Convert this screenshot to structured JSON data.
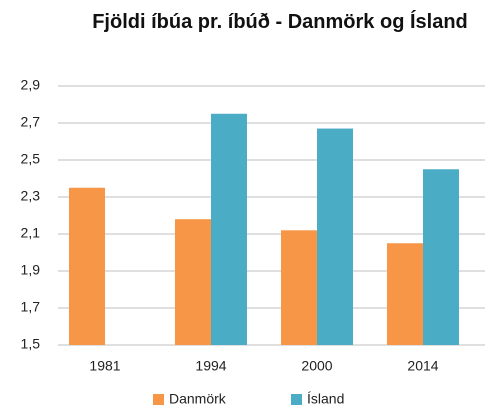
{
  "chart_data": {
    "type": "bar",
    "title": "Fjöldi íbúa pr. íbúð - Danmörk og Ísland",
    "categories": [
      "1981",
      "1994",
      "2000",
      "2014"
    ],
    "series": [
      {
        "name": "Danmörk",
        "color": "#f79646",
        "values": [
          2.35,
          2.18,
          2.12,
          2.05
        ]
      },
      {
        "name": "Ísland",
        "color": "#4bacc6",
        "values": [
          null,
          2.75,
          2.67,
          2.45
        ]
      }
    ],
    "ylim": [
      1.5,
      2.9
    ],
    "yticks": [
      {
        "value": 1.5,
        "label": "1,5"
      },
      {
        "value": 1.7,
        "label": "1,7"
      },
      {
        "value": 1.9,
        "label": "1,9"
      },
      {
        "value": 2.1,
        "label": "2,1"
      },
      {
        "value": 2.3,
        "label": "2,3"
      },
      {
        "value": 2.5,
        "label": "2,5"
      },
      {
        "value": 2.7,
        "label": "2,7"
      },
      {
        "value": 2.9,
        "label": "2,9"
      }
    ],
    "grid": true,
    "legend": "bottom"
  }
}
